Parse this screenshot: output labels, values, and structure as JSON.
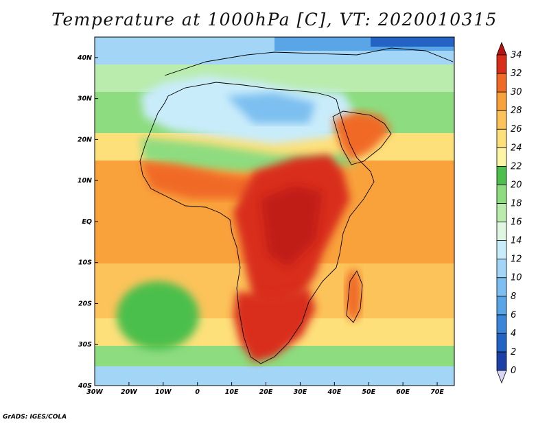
{
  "title": "Temperature at 1000hPa [C], VT: 2020010315",
  "credit": "GrADS: IGES/COLA",
  "map": {
    "lat_labels": [
      "40N",
      "30N",
      "20N",
      "10N",
      "EQ",
      "10S",
      "20S",
      "30S",
      "40S"
    ],
    "lon_labels": [
      "30W",
      "20W",
      "10W",
      "0",
      "10E",
      "20E",
      "30E",
      "40E",
      "50E",
      "60E",
      "70E"
    ],
    "lat_range": [
      -40,
      45
    ],
    "lon_range": [
      -30,
      75
    ]
  },
  "colorbar": {
    "labels": [
      "0",
      "2",
      "4",
      "6",
      "8",
      "10",
      "12",
      "14",
      "16",
      "18",
      "20",
      "22",
      "24",
      "26",
      "28",
      "30",
      "32",
      "34"
    ],
    "colors": [
      "#0f1c7e",
      "#1a40a8",
      "#2363c4",
      "#3b86d8",
      "#5aa5e6",
      "#7dbff0",
      "#a3d6f6",
      "#c9ecfa",
      "#dff6e0",
      "#b9ecad",
      "#8ddc7f",
      "#4cbf4c",
      "#fdf5a6",
      "#fde07a",
      "#fcc35a",
      "#f9a23c",
      "#f06a25",
      "#d92d1b",
      "#b81212"
    ],
    "min": 0,
    "max": 34,
    "step": 2
  }
}
